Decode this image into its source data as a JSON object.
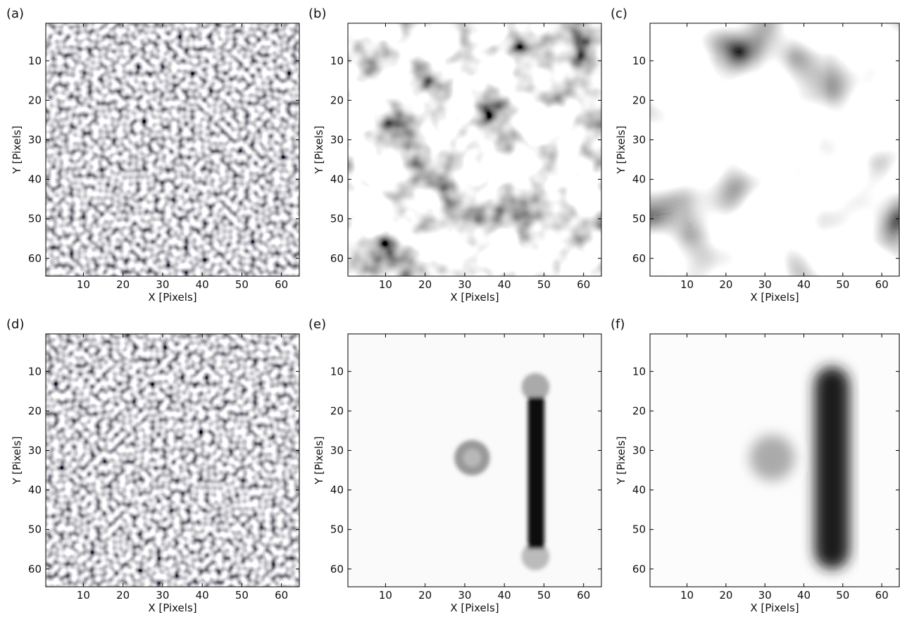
{
  "chart_data": [
    {
      "type": "image",
      "title": "(a)",
      "xlabel": "X [Pixels]",
      "ylabel": "Y [Pixels]",
      "xlim": [
        0.5,
        64.5
      ],
      "ylim": [
        0.5,
        64.5
      ],
      "y_reversed": true,
      "xticks": [
        10,
        20,
        30,
        40,
        50,
        60
      ],
      "yticks": [
        10,
        20,
        30,
        40,
        50,
        60
      ]
    },
    {
      "type": "image",
      "title": "(b)",
      "xlabel": "X [Pixels]",
      "ylabel": "Y [Pixels]",
      "xlim": [
        0.5,
        64.5
      ],
      "ylim": [
        0.5,
        64.5
      ],
      "y_reversed": true,
      "xticks": [
        10,
        20,
        30,
        40,
        50,
        60
      ],
      "yticks": [
        10,
        20,
        30,
        40,
        50,
        60
      ]
    },
    {
      "type": "image",
      "title": "(c)",
      "xlabel": "X [Pixels]",
      "ylabel": "Y [Pixels]",
      "xlim": [
        0.5,
        64.5
      ],
      "ylim": [
        0.5,
        64.5
      ],
      "y_reversed": true,
      "xticks": [
        10,
        20,
        30,
        40,
        50,
        60
      ],
      "yticks": [
        10,
        20,
        30,
        40,
        50,
        60
      ]
    },
    {
      "type": "image",
      "title": "(d)",
      "xlabel": "X [Pixels]",
      "ylabel": "Y [Pixels]",
      "xlim": [
        0.5,
        64.5
      ],
      "ylim": [
        0.5,
        64.5
      ],
      "y_reversed": true,
      "xticks": [
        10,
        20,
        30,
        40,
        50,
        60
      ],
      "yticks": [
        10,
        20,
        30,
        40,
        50,
        60
      ]
    },
    {
      "type": "image",
      "title": "(e)",
      "xlabel": "X [Pixels]",
      "ylabel": "Y [Pixels]",
      "xlim": [
        0.5,
        64.5
      ],
      "ylim": [
        0.5,
        64.5
      ],
      "y_reversed": true,
      "xticks": [
        10,
        20,
        30,
        40,
        50,
        60
      ],
      "yticks": [
        10,
        20,
        30,
        40,
        50,
        60
      ]
    },
    {
      "type": "image",
      "title": "(f)",
      "xlabel": "X [Pixels]",
      "ylabel": "Y [Pixels]",
      "xlim": [
        0.5,
        64.5
      ],
      "ylim": [
        0.5,
        64.5
      ],
      "y_reversed": true,
      "xticks": [
        10,
        20,
        30,
        40,
        50,
        60
      ],
      "yticks": [
        10,
        20,
        30,
        40,
        50,
        60
      ]
    }
  ]
}
